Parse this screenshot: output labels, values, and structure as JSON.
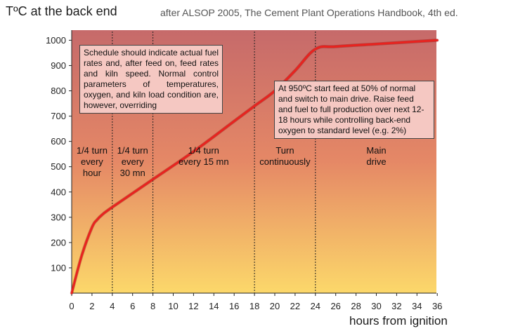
{
  "chart_data": {
    "type": "line",
    "ylabel": "TºC at the back end",
    "xlabel": "hours from ignition",
    "source_note": "after ALSOP 2005, The Cement Plant Operations Handbook, 4th ed.",
    "xlim": [
      0,
      36
    ],
    "ylim": [
      0,
      1050
    ],
    "x_ticks": [
      0,
      2,
      4,
      6,
      8,
      10,
      12,
      14,
      16,
      18,
      20,
      22,
      24,
      26,
      28,
      30,
      32,
      34,
      36
    ],
    "y_ticks": [
      100,
      200,
      300,
      400,
      500,
      600,
      700,
      800,
      900,
      1000
    ],
    "grid": false,
    "series": [
      {
        "color": "#e8231f",
        "x": [
          0,
          1,
          2,
          2.5,
          3,
          4,
          8,
          12,
          16,
          18,
          20,
          22,
          24,
          26,
          30,
          36
        ],
        "y": [
          0,
          150,
          260,
          290,
          310,
          340,
          450,
          560,
          680,
          740,
          800,
          880,
          965,
          975,
          985,
          1000
        ]
      }
    ],
    "phase_dividers": [
      4,
      8,
      18,
      24
    ],
    "phases": [
      {
        "label": "1/4 turn\nevery\nhour",
        "x_center": 2
      },
      {
        "label": "1/4 turn\nevery\n30 mn",
        "x_center": 6
      },
      {
        "label": "1/4 turn\nevery 15 mn",
        "x_center": 13
      },
      {
        "label": "Turn\ncontinuously",
        "x_center": 21
      },
      {
        "label": "Main\ndrive",
        "x_center": 30
      }
    ],
    "annotations": [
      {
        "id": "annot1",
        "text": "Schedule should indicate actual fuel rates and, after feed on, feed rates and kiln speed. Normal control parameters of temperatures, oxygen, and kiln load condition are, however, overriding"
      },
      {
        "id": "annot2",
        "text": "At 950ºC start feed at 50% of normal and switch to main drive. Raise feed and fuel to full production over next 12-18 hours while controlling back-end oxygen to standard level (e.g. 2%)"
      }
    ],
    "background_gradient": {
      "top": "#c66a6a",
      "mid": "#e58866",
      "bottom": "#fcd86a"
    }
  }
}
